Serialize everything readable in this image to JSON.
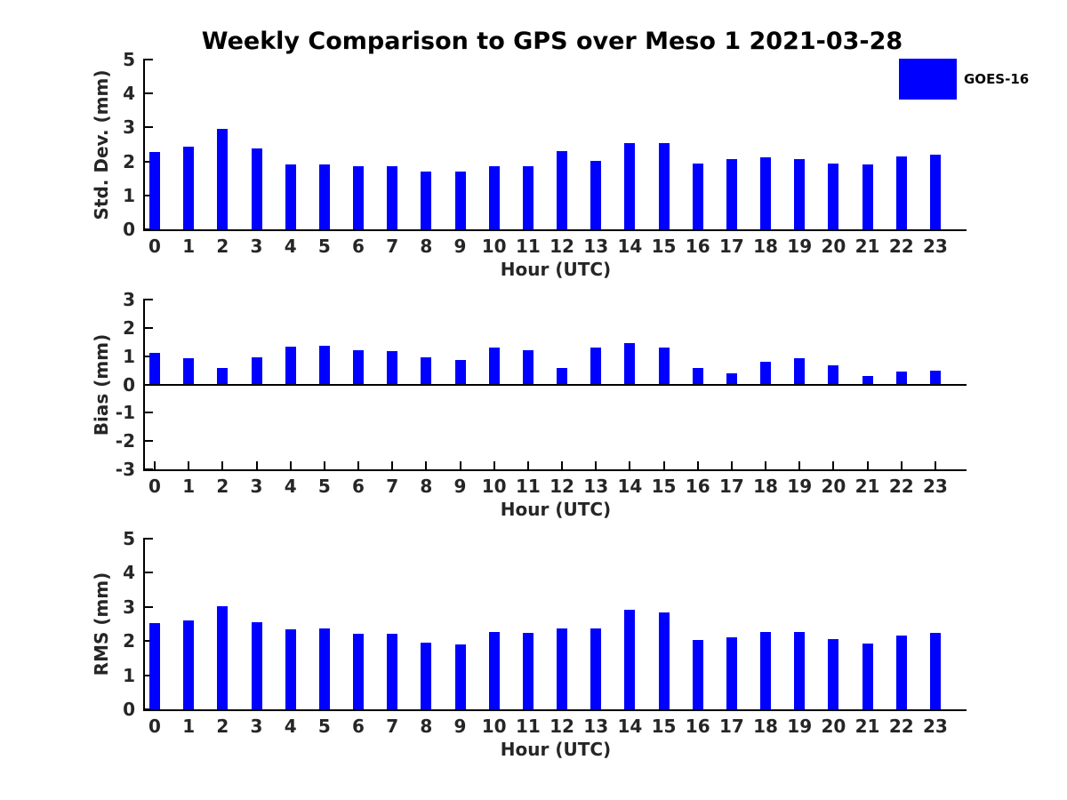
{
  "title": "Weekly Comparison to GPS over Meso 1 2021-03-28",
  "legend": {
    "label": "GOES-16",
    "color": "#0000FF",
    "position": "upper-right-outside"
  },
  "xlabel": "Hour (UTC)",
  "chart_data": [
    {
      "type": "bar",
      "panel": "std-dev",
      "title": "",
      "ylabel": "Std. Dev. (mm)",
      "xlabel": "Hour (UTC)",
      "ylim": [
        0,
        5
      ],
      "yticks": [
        0,
        1,
        2,
        3,
        4,
        5
      ],
      "grid": false,
      "categories": [
        "0",
        "1",
        "2",
        "3",
        "4",
        "5",
        "6",
        "7",
        "8",
        "9",
        "10",
        "11",
        "12",
        "13",
        "14",
        "15",
        "16",
        "17",
        "18",
        "19",
        "20",
        "21",
        "22",
        "23"
      ],
      "series": [
        {
          "name": "GOES-16",
          "color": "#0000FF",
          "values": [
            2.28,
            2.43,
            2.97,
            2.38,
            1.9,
            1.9,
            1.85,
            1.87,
            1.7,
            1.7,
            1.85,
            1.87,
            2.31,
            2.01,
            2.55,
            2.55,
            1.94,
            2.06,
            2.13,
            2.08,
            1.94,
            1.92,
            2.14,
            2.2
          ]
        }
      ]
    },
    {
      "type": "bar",
      "panel": "bias",
      "title": "",
      "ylabel": "Bias (mm)",
      "xlabel": "Hour (UTC)",
      "ylim": [
        -3,
        3
      ],
      "yticks": [
        -3,
        -2,
        -1,
        0,
        1,
        2,
        3
      ],
      "grid": false,
      "categories": [
        "0",
        "1",
        "2",
        "3",
        "4",
        "5",
        "6",
        "7",
        "8",
        "9",
        "10",
        "11",
        "12",
        "13",
        "14",
        "15",
        "16",
        "17",
        "18",
        "19",
        "20",
        "21",
        "22",
        "23"
      ],
      "series": [
        {
          "name": "GOES-16",
          "color": "#0000FF",
          "values": [
            1.1,
            0.92,
            0.57,
            0.95,
            1.35,
            1.38,
            1.22,
            1.19,
            0.95,
            0.86,
            1.29,
            1.22,
            0.57,
            1.29,
            1.46,
            1.31,
            0.58,
            0.39,
            0.79,
            0.94,
            0.66,
            0.3,
            0.47,
            0.5
          ]
        }
      ]
    },
    {
      "type": "bar",
      "panel": "rms",
      "title": "",
      "ylabel": "RMS (mm)",
      "xlabel": "Hour (UTC)",
      "ylim": [
        0,
        5
      ],
      "yticks": [
        0,
        1,
        2,
        3,
        4,
        5
      ],
      "grid": false,
      "categories": [
        "0",
        "1",
        "2",
        "3",
        "4",
        "5",
        "6",
        "7",
        "8",
        "9",
        "10",
        "11",
        "12",
        "13",
        "14",
        "15",
        "16",
        "17",
        "18",
        "19",
        "20",
        "21",
        "22",
        "23"
      ],
      "series": [
        {
          "name": "GOES-16",
          "color": "#0000FF",
          "values": [
            2.52,
            2.6,
            3.01,
            2.55,
            2.35,
            2.37,
            2.22,
            2.22,
            1.96,
            1.91,
            2.27,
            2.24,
            2.38,
            2.38,
            2.92,
            2.84,
            2.02,
            2.1,
            2.26,
            2.26,
            2.05,
            1.92,
            2.17,
            2.24
          ]
        }
      ]
    }
  ]
}
